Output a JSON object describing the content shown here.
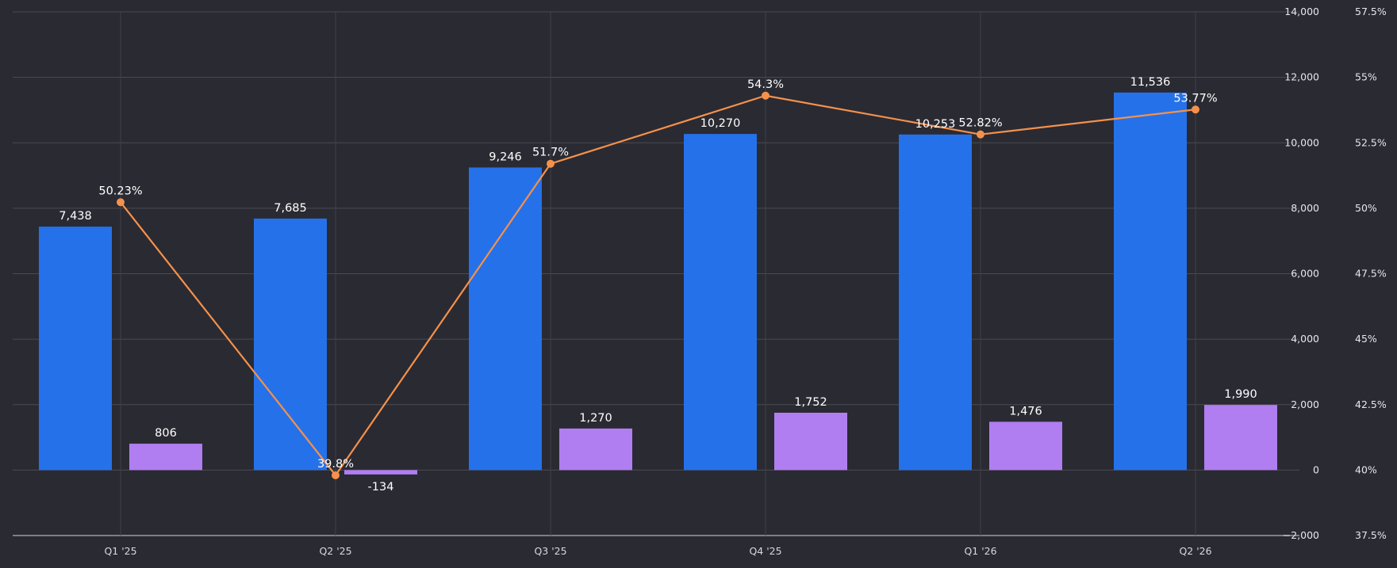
{
  "chart_data": {
    "type": "bar",
    "categories": [
      "Q1 '25",
      "Q2 '25",
      "Q3 '25",
      "Q4 '25",
      "Q1 '26",
      "Q2 '26"
    ],
    "series": [
      {
        "type": "bar",
        "axis": "left",
        "color": "#2571ea",
        "values": [
          7438,
          7685,
          9246,
          10270,
          10253,
          11536
        ],
        "labels": [
          "7,438",
          "7,685",
          "9,246",
          "10,270",
          "10,253",
          "11,536"
        ]
      },
      {
        "type": "bar",
        "axis": "left",
        "color": "#b07ef0",
        "values": [
          806,
          -134,
          1270,
          1752,
          1476,
          1990
        ],
        "labels": [
          "806",
          "-134",
          "1,270",
          "1,752",
          "1,476",
          "1,990"
        ]
      },
      {
        "type": "line",
        "axis": "right",
        "color": "#f5914a",
        "values": [
          50.23,
          39.8,
          51.7,
          54.3,
          52.82,
          53.77
        ],
        "labels": [
          "50.23%",
          "39.8%",
          "51.7%",
          "54.3%",
          "52.82%",
          "53.77%"
        ]
      }
    ],
    "y_left": {
      "min": -2000,
      "max": 14000,
      "ticks": [
        14000,
        12000,
        10000,
        8000,
        6000,
        4000,
        2000,
        0,
        -2000
      ],
      "tick_labels": [
        "14,000",
        "12,000",
        "10,000",
        "8,000",
        "6,000",
        "4,000",
        "2,000",
        "0",
        "−2,000"
      ]
    },
    "y_right": {
      "min": 37.5,
      "max": 57.5,
      "ticks": [
        57.5,
        55,
        52.5,
        50,
        47.5,
        45,
        42.5,
        40,
        37.5
      ],
      "tick_labels": [
        "57.5%",
        "55%",
        "52.5%",
        "50%",
        "47.5%",
        "45%",
        "42.5%",
        "40%",
        "37.5%"
      ]
    },
    "grid": true,
    "legend": "none"
  }
}
